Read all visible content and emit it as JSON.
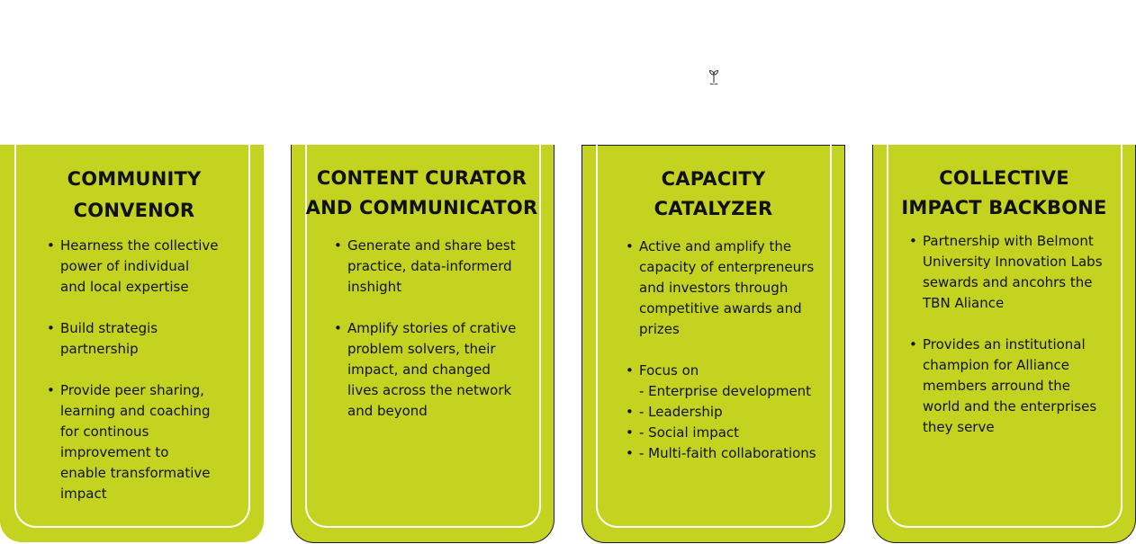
{
  "colors": {
    "card_fill": "#c3d31f",
    "card_inner_border": "#ffffff",
    "card_outline": "#1a1a1a"
  },
  "icon": "plant-sprout-icon",
  "cards": [
    {
      "title": "COMMUNITY\nCONVENOR",
      "bullets": [
        "Hearness the collective\npower of individual\nand local expertise",
        "Build strategis\npartnership",
        "Provide peer sharing,\nlearning and coaching\nfor continous\nimprovement to\nenable transformative\nimpact"
      ]
    },
    {
      "title": "CONTENT CURATOR\nAND COMMUNICATOR",
      "bullets": [
        "Generate and share best\npractice, data-informerd\ninshight",
        "Amplify stories of crative\nproblem solvers, their\nimpact, and changed\nlives across the network\nand beyond"
      ]
    },
    {
      "title": "CAPACITY\nCATALYZER",
      "bullets": [
        "Active and amplify the\ncapacity of enterpreneurs\nand investors through\ncompetitive awards and\nprizes",
        "Focus on\n- Enterprise development",
        "- Leadership",
        "- Social impact",
        "- Multi-faith collaborations"
      ]
    },
    {
      "title": "COLLECTIVE\nIMPACT BACKBONE",
      "bullets": [
        "Partnership with Belmont\nUniversity Innovation Labs\nsewards and ancohrs the\nTBN Aliance",
        "Provides an institutional\nchampion for Alliance\nmembers arround the\nworld and the enterprises\nthey serve"
      ]
    }
  ]
}
